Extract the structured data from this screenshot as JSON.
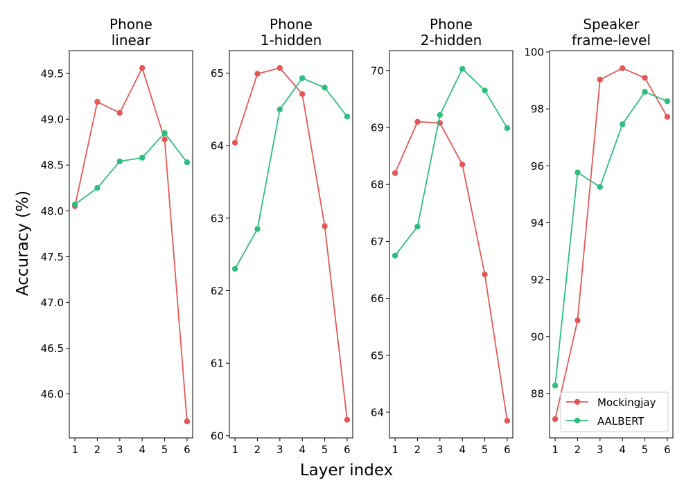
{
  "figure": {
    "ylabel": "Accuracy (%)",
    "xlabel": "Layer index"
  },
  "colors": {
    "Mockingjay": "#e45756",
    "AALBERT": "#2ebd7e"
  },
  "legend": {
    "entries": [
      "Mockingjay",
      "AALBERT"
    ],
    "location": "lower-right of last panel"
  },
  "chart_data": [
    {
      "type": "line",
      "title": "Phone\nlinear",
      "x": [
        1,
        2,
        3,
        4,
        5,
        6
      ],
      "xticks": [
        "1",
        "2",
        "3",
        "4",
        "5",
        "6"
      ],
      "ylim": [
        45.52,
        49.75
      ],
      "yticks": [
        "46.0",
        "46.5",
        "47.0",
        "47.5",
        "48.0",
        "48.5",
        "49.0",
        "49.5"
      ],
      "ytick_values": [
        46.0,
        46.5,
        47.0,
        47.5,
        48.0,
        48.5,
        49.0,
        49.5
      ],
      "series": [
        {
          "name": "Mockingjay",
          "values": [
            48.05,
            49.19,
            49.07,
            49.56,
            48.78,
            45.7
          ]
        },
        {
          "name": "AALBERT",
          "values": [
            48.07,
            48.25,
            48.54,
            48.58,
            48.85,
            48.53
          ]
        }
      ]
    },
    {
      "type": "line",
      "title": "Phone\n1-hidden",
      "x": [
        1,
        2,
        3,
        4,
        5,
        6
      ],
      "xticks": [
        "1",
        "2",
        "3",
        "4",
        "5",
        "6"
      ],
      "ylim": [
        59.97,
        65.31
      ],
      "yticks": [
        "60",
        "61",
        "62",
        "63",
        "64",
        "65"
      ],
      "ytick_values": [
        60,
        61,
        62,
        63,
        64,
        65
      ],
      "series": [
        {
          "name": "Mockingjay",
          "values": [
            64.04,
            64.99,
            65.07,
            64.71,
            62.89,
            60.22
          ]
        },
        {
          "name": "AALBERT",
          "values": [
            62.3,
            62.85,
            64.5,
            64.93,
            64.8,
            64.4
          ]
        }
      ]
    },
    {
      "type": "line",
      "title": "Phone\n2-hidden",
      "x": [
        1,
        2,
        3,
        4,
        5,
        6
      ],
      "xticks": [
        "1",
        "2",
        "3",
        "4",
        "5",
        "6"
      ],
      "ylim": [
        63.55,
        70.35
      ],
      "yticks": [
        "64",
        "65",
        "66",
        "67",
        "68",
        "69",
        "70"
      ],
      "ytick_values": [
        64,
        65,
        66,
        67,
        68,
        69,
        70
      ],
      "series": [
        {
          "name": "Mockingjay",
          "values": [
            68.2,
            69.1,
            69.08,
            68.35,
            66.42,
            63.85
          ]
        },
        {
          "name": "AALBERT",
          "values": [
            66.75,
            67.26,
            69.22,
            70.03,
            69.65,
            68.99
          ]
        }
      ]
    },
    {
      "type": "line",
      "title": "Speaker\nframe-level",
      "x": [
        1,
        2,
        3,
        4,
        5,
        6
      ],
      "xticks": [
        "1",
        "2",
        "3",
        "4",
        "5",
        "6"
      ],
      "ylim": [
        86.44,
        100.05
      ],
      "yticks": [
        "88",
        "90",
        "92",
        "94",
        "96",
        "98",
        "100"
      ],
      "ytick_values": [
        88,
        90,
        92,
        94,
        96,
        98,
        100
      ],
      "series": [
        {
          "name": "Mockingjay",
          "values": [
            87.1,
            90.57,
            99.03,
            99.43,
            99.09,
            97.72
          ]
        },
        {
          "name": "AALBERT",
          "values": [
            88.28,
            95.77,
            95.26,
            97.46,
            98.6,
            98.27
          ]
        }
      ]
    }
  ]
}
